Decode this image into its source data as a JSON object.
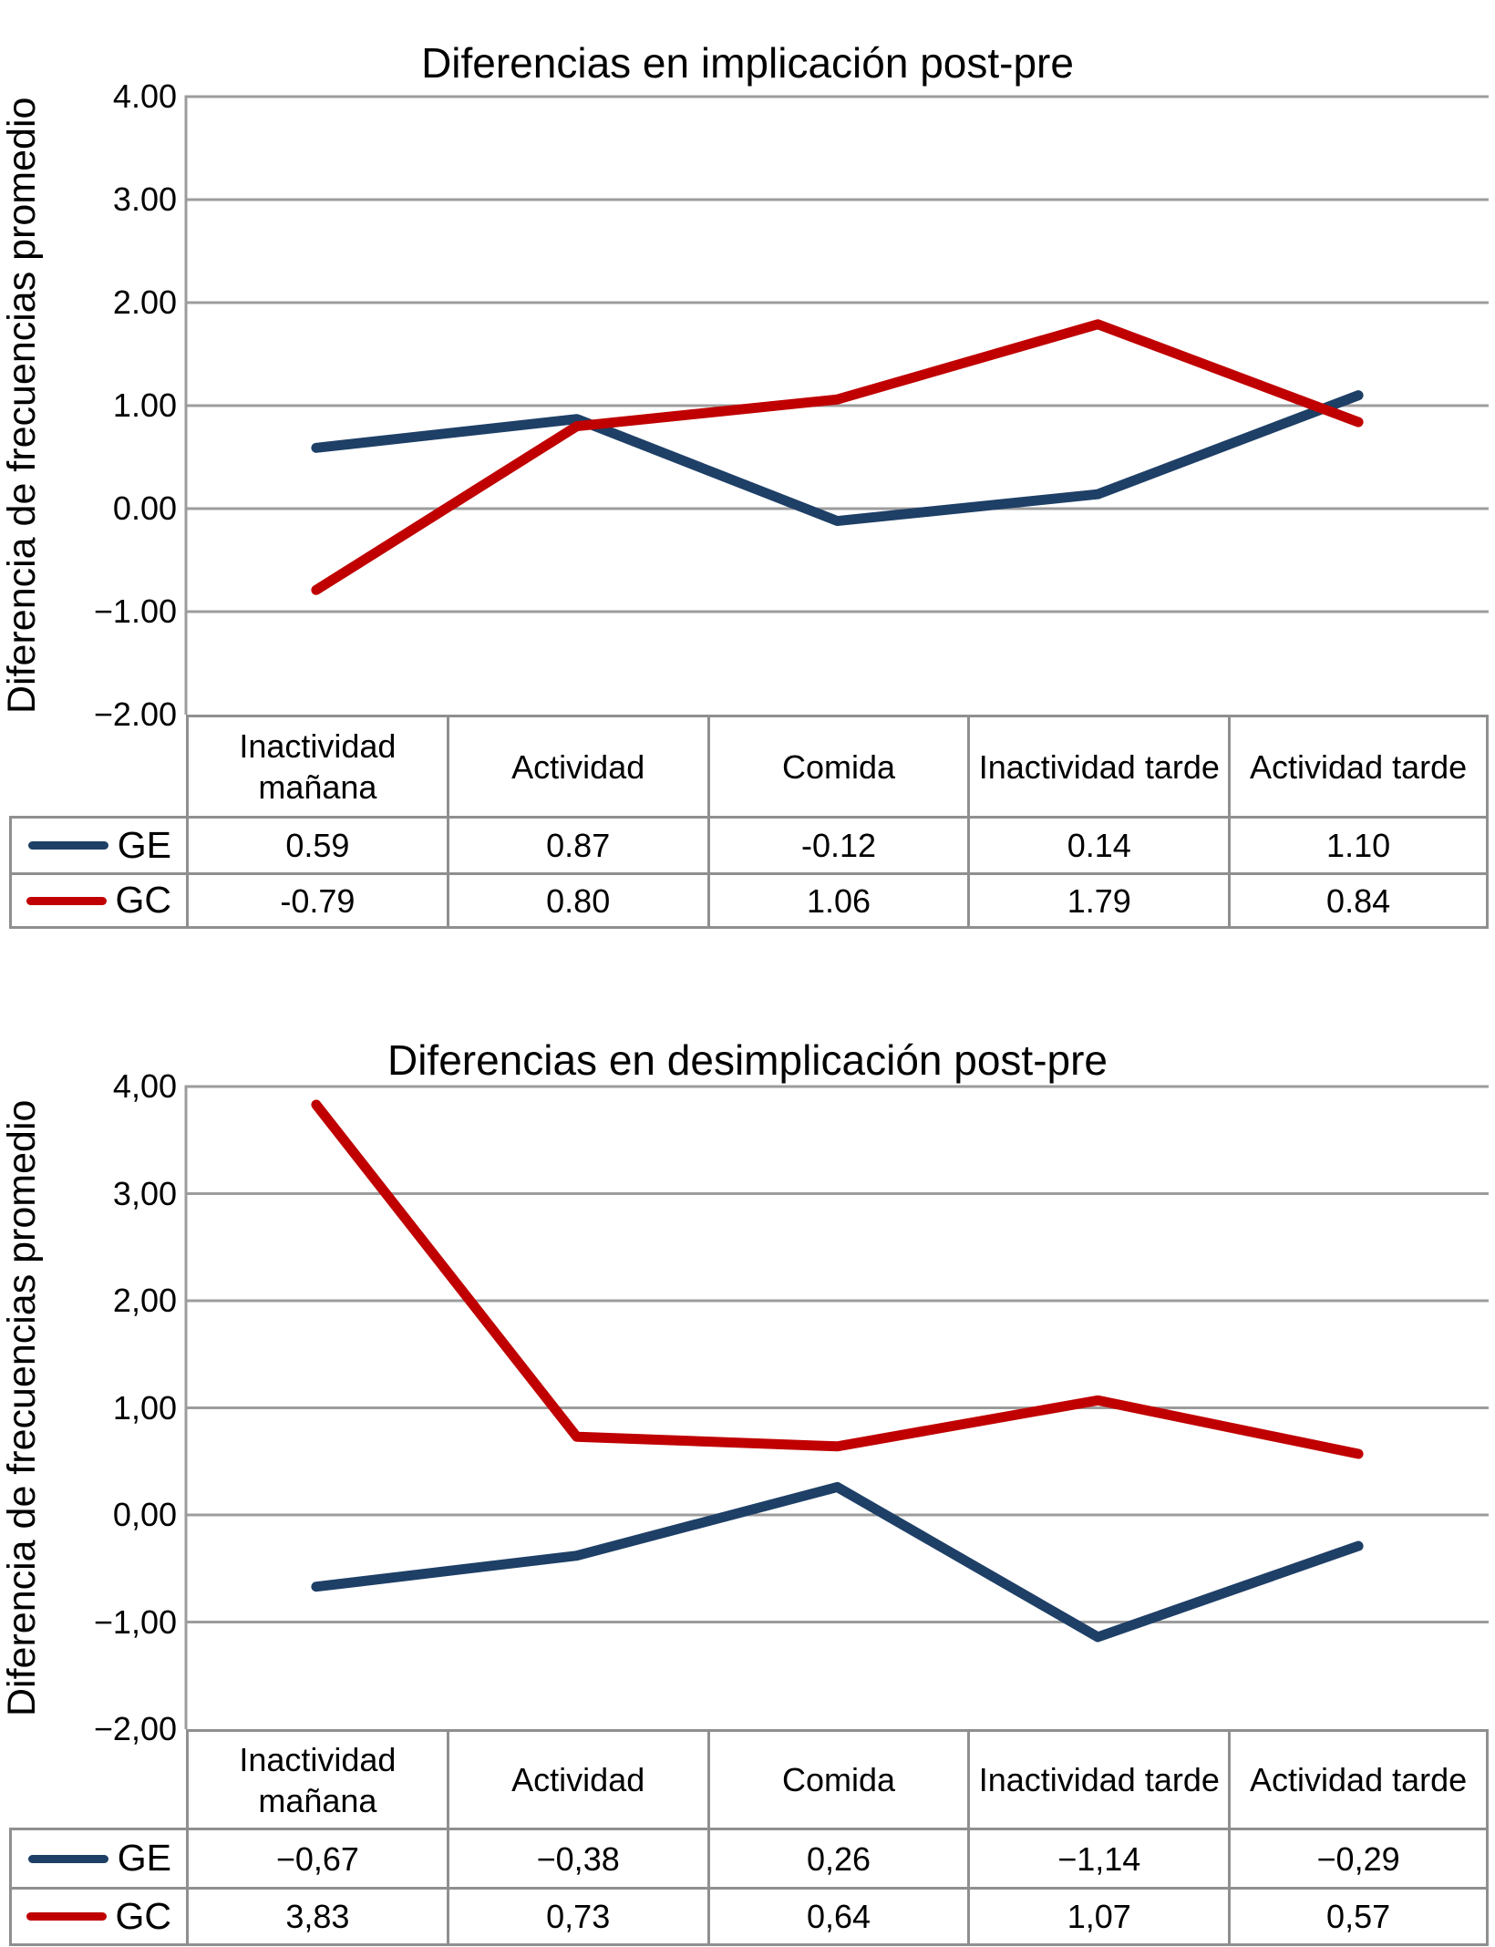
{
  "colors": {
    "series_ge": "#1E3F66",
    "series_gc": "#C00000",
    "gridline": "#9C9C9C",
    "table_border": "#8F8F8F",
    "text": "#000000",
    "background": "#FFFFFF"
  },
  "chart_data": [
    {
      "type": "line",
      "title": "Diferencias en implicación post-pre",
      "ylabel": "Diferencia de frecuencias promedio",
      "xlabel": "",
      "ylim": [
        -2,
        4
      ],
      "grid": true,
      "legend_position": "table-left",
      "decimal_separator": ".",
      "yticks": [
        "4.00",
        "3.00",
        "2.00",
        "1.00",
        "0.00",
        "−1.00",
        "−2.00"
      ],
      "categories": [
        "Inactividad mañana",
        "Actividad",
        "Comida",
        "Inactividad tarde",
        "Actividad tarde"
      ],
      "series": [
        {
          "name": "GE",
          "color": "#1E3F66",
          "values": [
            0.59,
            0.87,
            -0.12,
            0.14,
            1.1
          ],
          "labels": [
            "0.59",
            "0.87",
            "-0.12",
            "0.14",
            "1.10"
          ]
        },
        {
          "name": "GC",
          "color": "#C00000",
          "values": [
            -0.79,
            0.8,
            1.06,
            1.79,
            0.84
          ],
          "labels": [
            "-0.79",
            "0.80",
            "1.06",
            "1.79",
            "0.84"
          ]
        }
      ]
    },
    {
      "type": "line",
      "title": "Diferencias en desimplicación post-pre",
      "ylabel": "Diferencia de frecuencias promedio",
      "xlabel": "",
      "ylim": [
        -2,
        4
      ],
      "grid": true,
      "legend_position": "table-left",
      "decimal_separator": ",",
      "yticks": [
        "4,00",
        "3,00",
        "2,00",
        "1,00",
        "0,00",
        "−1,00",
        "−2,00"
      ],
      "categories": [
        "Inactividad mañana",
        "Actividad",
        "Comida",
        "Inactividad tarde",
        "Actividad tarde"
      ],
      "series": [
        {
          "name": "GE",
          "color": "#1E3F66",
          "values": [
            -0.67,
            -0.38,
            0.26,
            -1.14,
            -0.29
          ],
          "labels": [
            "−0,67",
            "−0,38",
            "0,26",
            "−1,14",
            "−0,29"
          ]
        },
        {
          "name": "GC",
          "color": "#C00000",
          "values": [
            3.83,
            0.73,
            0.64,
            1.07,
            0.57
          ],
          "labels": [
            "3,83",
            "0,73",
            "0,64",
            "1,07",
            "0,57"
          ]
        }
      ]
    }
  ]
}
